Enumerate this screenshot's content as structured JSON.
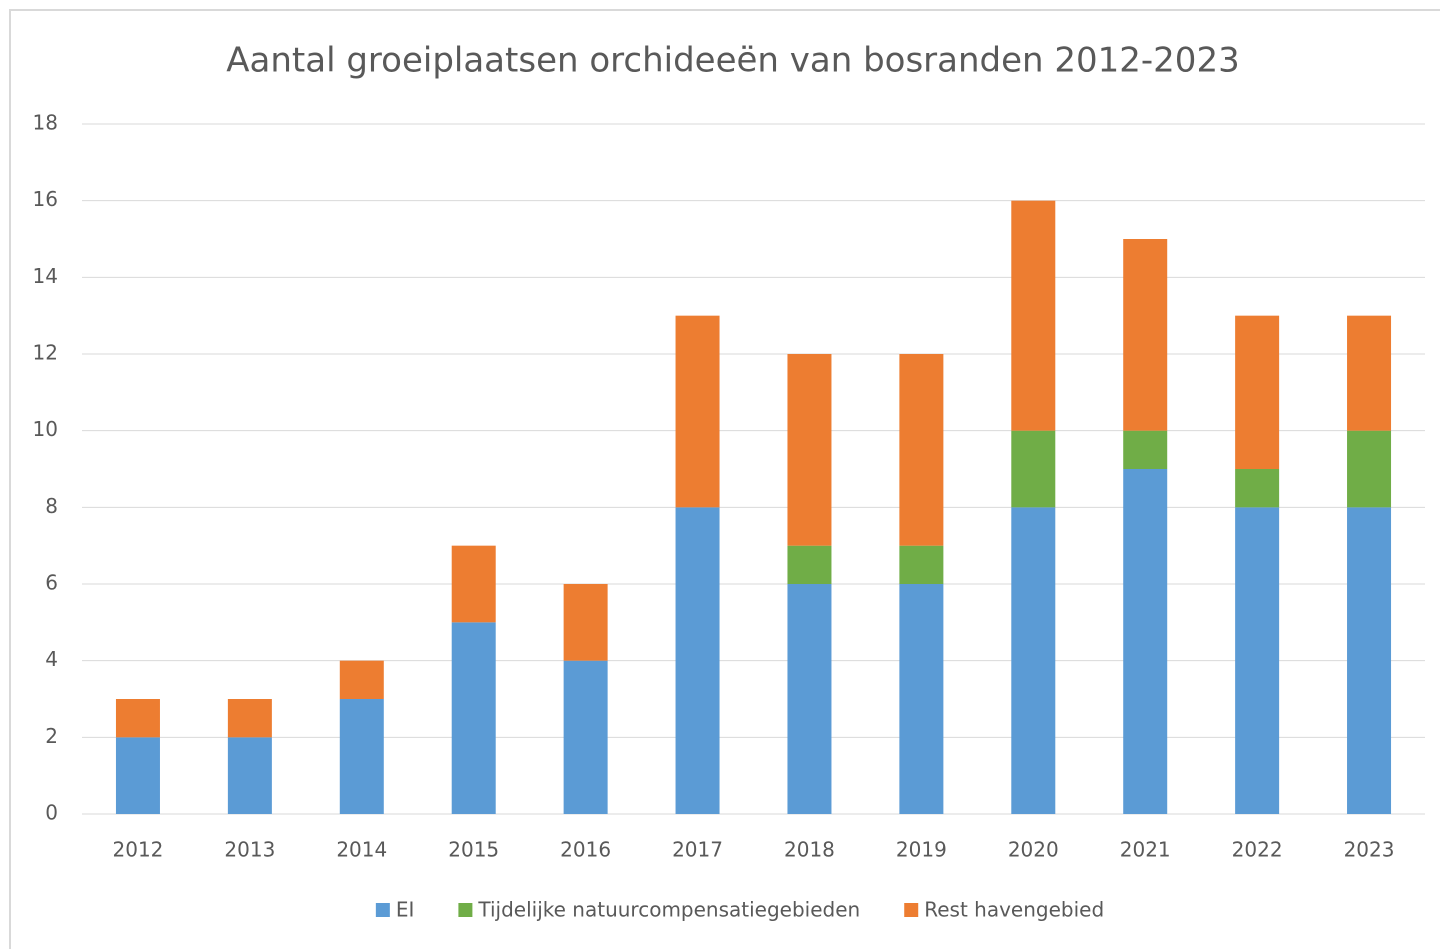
{
  "chart_data": {
    "type": "bar",
    "stacked": true,
    "title": "Aantal groeiplaatsen orchideeën van bosranden 2012-2023",
    "categories": [
      "2012",
      "2013",
      "2014",
      "2015",
      "2016",
      "2017",
      "2018",
      "2019",
      "2020",
      "2021",
      "2022",
      "2023"
    ],
    "series": [
      {
        "name": "EI",
        "color": "#5b9bd5",
        "values": [
          2,
          2,
          3,
          5,
          4,
          8,
          6,
          6,
          8,
          9,
          8,
          8
        ]
      },
      {
        "name": "Tijdelijke natuurcompensatiegebieden",
        "color": "#70ad47",
        "values": [
          0,
          0,
          0,
          0,
          0,
          0,
          1,
          1,
          2,
          1,
          1,
          2
        ]
      },
      {
        "name": "Rest havengebied",
        "color": "#ed7d31",
        "values": [
          1,
          1,
          1,
          2,
          2,
          5,
          5,
          5,
          6,
          5,
          4,
          3
        ]
      }
    ],
    "ylim": [
      0,
      18
    ],
    "yticks": [
      0,
      2,
      4,
      6,
      8,
      10,
      12,
      14,
      16,
      18
    ],
    "grid": true,
    "legend": "bottom"
  }
}
